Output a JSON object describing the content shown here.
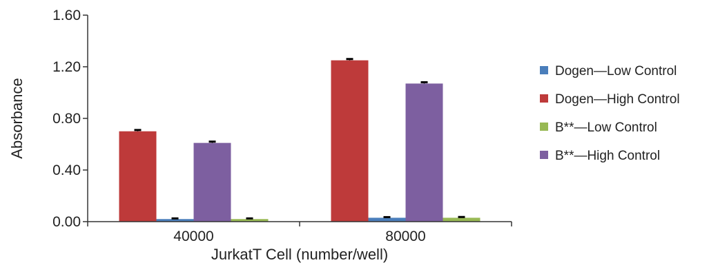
{
  "chart_data": {
    "type": "bar",
    "categories": [
      "40000",
      "80000"
    ],
    "series": [
      {
        "name": "Dogen—Low Control",
        "color": "#4a7ebb",
        "values": [
          0.02,
          0.03
        ],
        "errors": [
          0.005,
          0.005
        ]
      },
      {
        "name": "Dogen—High Control",
        "color": "#be3a3a",
        "values": [
          0.7,
          1.25
        ],
        "errors": [
          0.01,
          0.01
        ]
      },
      {
        "name": "B**—Low Control",
        "color": "#98b954",
        "values": [
          0.02,
          0.03
        ],
        "errors": [
          0.005,
          0.006
        ]
      },
      {
        "name": "B**—High Control",
        "color": "#7d5fa0",
        "values": [
          0.61,
          1.07
        ],
        "errors": [
          0.01,
          0.01
        ]
      }
    ],
    "draw_order": [
      1,
      0,
      3,
      2
    ],
    "yticks": [
      "0.00",
      "0.40",
      "0.80",
      "1.20",
      "1.60"
    ],
    "ytick_values": [
      0,
      0.4,
      0.8,
      1.2,
      1.6
    ],
    "ylim": [
      0,
      1.6
    ],
    "xlabel": "JurkatT Cell (number/well)",
    "ylabel": "Absorbance",
    "title": "",
    "legend_position": "right",
    "grid": false
  }
}
